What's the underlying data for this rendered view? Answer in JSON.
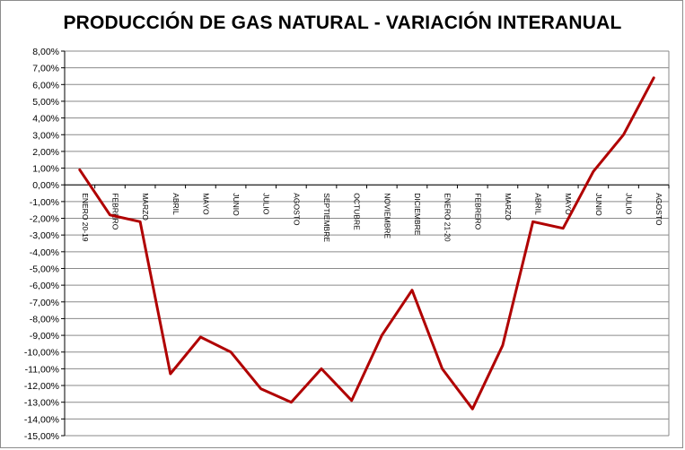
{
  "chart_data": {
    "type": "line",
    "title": "PRODUCCIÓN DE GAS NATURAL - VARIACIÓN INTERANUAL",
    "xlabel": "",
    "ylabel": "",
    "ylim": [
      -15,
      8
    ],
    "ytick_step": 1,
    "ytick_labels": [
      "8,00%",
      "7,00%",
      "6,00%",
      "5,00%",
      "4,00%",
      "3,00%",
      "2,00%",
      "1,00%",
      "0,00%",
      "-1,00%",
      "-2,00%",
      "-3,00%",
      "-4,00%",
      "-5,00%",
      "-6,00%",
      "-7,00%",
      "-8,00%",
      "-9,00%",
      "-10,00%",
      "-11,00%",
      "-12,00%",
      "-13,00%",
      "-14,00%",
      "-15,00%"
    ],
    "categories": [
      "ENERO 20-19",
      "FEBRERO",
      "MARZO",
      "ABRIL",
      "MAYO",
      "JUNIO",
      "JULIO",
      "AGOSTO",
      "SEPTIEMBRE",
      "OCTUBRE",
      "NOVIEMBRE",
      "DICIEMBRE",
      "ENERO 21-20",
      "FEBRERO",
      "MARZO",
      "ABRIL",
      "MAYO",
      "JUNIO",
      "JULIO",
      "AGOSTO"
    ],
    "series": [
      {
        "color": "#b00000",
        "values": [
          0.9,
          -1.8,
          -2.2,
          -11.3,
          -9.1,
          -10.0,
          -12.2,
          -13.0,
          -11.0,
          -12.9,
          -9.0,
          -6.3,
          -11.0,
          -13.4,
          -9.6,
          -2.2,
          -2.6,
          0.8,
          3.0,
          6.4
        ]
      }
    ],
    "grid": true,
    "legend": "none"
  }
}
